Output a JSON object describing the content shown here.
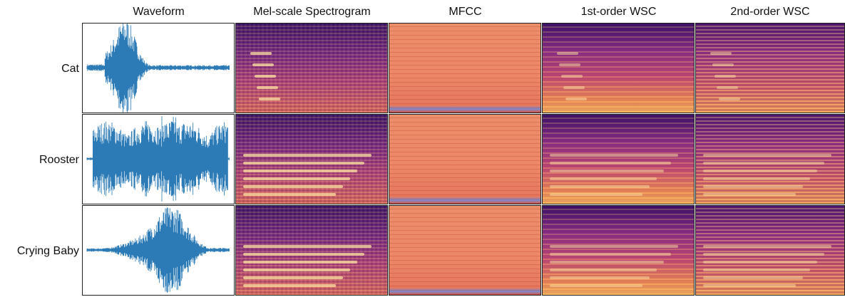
{
  "header": {
    "columns": [
      "Waveform",
      "Mel-scale Spectrogram",
      "MFCC",
      "1st-order WSC",
      "2nd-order WSC"
    ]
  },
  "rows": [
    {
      "label": "Cat"
    },
    {
      "label": "Rooster"
    },
    {
      "label": "Crying Baby"
    }
  ]
}
